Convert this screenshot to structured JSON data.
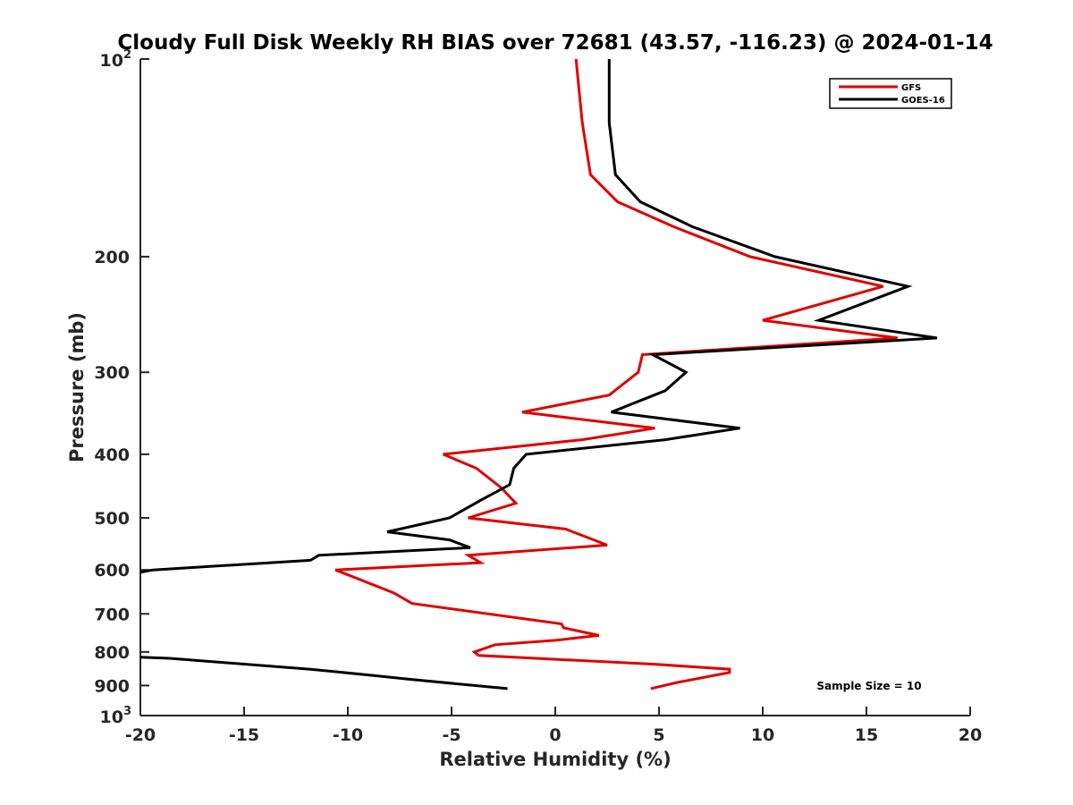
{
  "chart_data": {
    "type": "line",
    "title": "Cloudy Full Disk Weekly RH BIAS over 72681 (43.57, -116.23) @ 2024-01-14",
    "xlabel": "Relative Humidity (%)",
    "ylabel": "Pressure (mb)",
    "xlim": [
      -20,
      20
    ],
    "ylim": [
      100,
      1000
    ],
    "y_scale": "log",
    "y_reversed": true,
    "x_ticks": [
      -20,
      -15,
      -10,
      -5,
      0,
      5,
      10,
      15,
      20
    ],
    "x_tick_labels": [
      "-20",
      "-15",
      "-10",
      "-5",
      "0",
      "5",
      "10",
      "15",
      "20"
    ],
    "y_ticks": [
      200,
      300,
      400,
      500,
      600,
      700,
      800,
      900
    ],
    "y_tick_labels": [
      "200",
      "300",
      "400",
      "500",
      "600",
      "700",
      "800",
      "900"
    ],
    "y_exp_labels": [
      {
        "value": 100,
        "base": "10",
        "exp": "2"
      },
      {
        "value": 1000,
        "base": "10",
        "exp": "3"
      }
    ],
    "grid": false,
    "legend_position": "top-right",
    "colors": {
      "GFS": "#e00000",
      "GOES-16": "#000000",
      "axis": "#262626"
    },
    "series": [
      {
        "name": "GFS",
        "segments": [
          [
            [
              1.0,
              100
            ],
            [
              1.3,
              125
            ],
            [
              1.7,
              150
            ],
            [
              3.0,
              165
            ],
            [
              5.7,
              180
            ],
            [
              9.4,
              200
            ],
            [
              15.8,
              222
            ],
            [
              10.0,
              250
            ],
            [
              16.5,
              266
            ],
            [
              4.2,
              282
            ],
            [
              4.0,
              300
            ],
            [
              2.6,
              325
            ],
            [
              -1.6,
              345
            ],
            [
              4.8,
              365
            ],
            [
              1.3,
              380
            ],
            [
              -5.4,
              400
            ],
            [
              -3.8,
              420
            ],
            [
              -2.6,
              450
            ],
            [
              -1.9,
              475
            ],
            [
              -4.2,
              500
            ],
            [
              0.5,
              520
            ],
            [
              2.5,
              550
            ],
            [
              -4.2,
              570
            ],
            [
              -3.6,
              585
            ],
            [
              -10.6,
              600
            ],
            [
              -7.8,
              650
            ],
            [
              -6.9,
              675
            ],
            [
              0.3,
              725
            ],
            [
              0.4,
              735
            ],
            [
              2.1,
              755
            ],
            [
              0.0,
              768
            ],
            [
              -2.9,
              780
            ],
            [
              -3.9,
              800
            ],
            [
              -3.7,
              810
            ],
            [
              4.7,
              835
            ],
            [
              8.4,
              850
            ],
            [
              8.4,
              860
            ],
            [
              5.9,
              890
            ],
            [
              4.6,
              910
            ]
          ]
        ]
      },
      {
        "name": "GOES-16",
        "segments": [
          [
            [
              2.6,
              100
            ],
            [
              2.6,
              125
            ],
            [
              2.9,
              150
            ],
            [
              4.1,
              165
            ],
            [
              6.6,
              180
            ],
            [
              10.6,
              200
            ],
            [
              17.0,
              222
            ],
            [
              12.7,
              250
            ],
            [
              18.4,
              266
            ],
            [
              4.7,
              282
            ],
            [
              6.3,
              300
            ],
            [
              5.3,
              320
            ],
            [
              2.7,
              345
            ],
            [
              8.9,
              365
            ],
            [
              5.3,
              380
            ],
            [
              -1.4,
              400
            ],
            [
              -2.0,
              420
            ],
            [
              -2.2,
              445
            ],
            [
              -3.6,
              470
            ],
            [
              -5.1,
              500
            ],
            [
              -8.1,
              525
            ],
            [
              -5.1,
              540
            ],
            [
              -4.1,
              555
            ],
            [
              -11.4,
              570
            ],
            [
              -11.8,
              580
            ],
            [
              -19.4,
              600
            ],
            [
              -20.0,
              605
            ]
          ],
          [
            [
              -20.0,
              815
            ],
            [
              -18.6,
              818
            ],
            [
              -11.8,
              850
            ],
            [
              -8.6,
              870
            ],
            [
              -7.1,
              880
            ],
            [
              -2.3,
              910
            ]
          ]
        ]
      }
    ],
    "annotations": [
      "Sample Size = 10"
    ]
  }
}
